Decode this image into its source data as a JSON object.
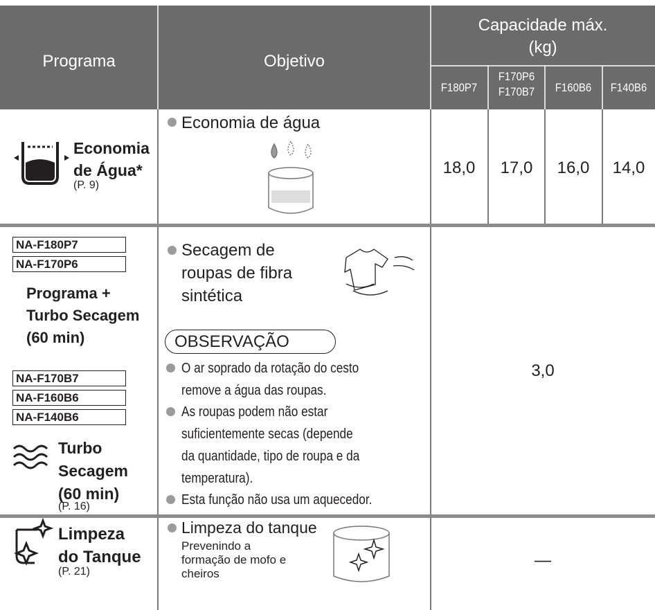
{
  "header": {
    "programa": "Programa",
    "objetivo": "Objetivo",
    "capacidade": "Capacidade máx.",
    "unit": "(kg)",
    "models": [
      [
        "F180P7"
      ],
      [
        "F170P6",
        "F170B7"
      ],
      [
        "F160B6"
      ],
      [
        "F140B6"
      ]
    ]
  },
  "rows": [
    {
      "name": [
        "Economia",
        "de Água*"
      ],
      "page": "(P. 9)",
      "objective": "Economia de água",
      "values": [
        "18,0",
        "17,0",
        "16,0",
        "14,0"
      ]
    },
    {
      "models_a": [
        "NA-F180P7",
        "NA-F170P6"
      ],
      "name_a": [
        "Programa +",
        "Turbo Secagem",
        "(60 min)"
      ],
      "models_b": [
        "NA-F170B7",
        "NA-F160B6",
        "NA-F140B6"
      ],
      "name_b": [
        "Turbo",
        "Secagem",
        "(60 min)"
      ],
      "page": "(P. 16)",
      "objective": [
        "Secagem de",
        "roupas de fibra",
        "sintética"
      ],
      "note_title": "OBSERVAÇÃO",
      "notes": [
        [
          "O ar soprado da rotação do cesto",
          "remove a água das roupas."
        ],
        [
          "As roupas podem não estar",
          "suficientemente secas (depende",
          "da quantidade, tipo de roupa e da",
          "temperatura)."
        ],
        [
          "Esta função não usa um aquecedor."
        ]
      ],
      "value": "3,0"
    },
    {
      "name": [
        "Limpeza",
        "do Tanque"
      ],
      "page": "(P. 21)",
      "objective": "Limpeza do tanque",
      "detail": [
        "Prevenindo a",
        "formação de mofo e",
        "cheiros"
      ],
      "value": "—"
    }
  ]
}
